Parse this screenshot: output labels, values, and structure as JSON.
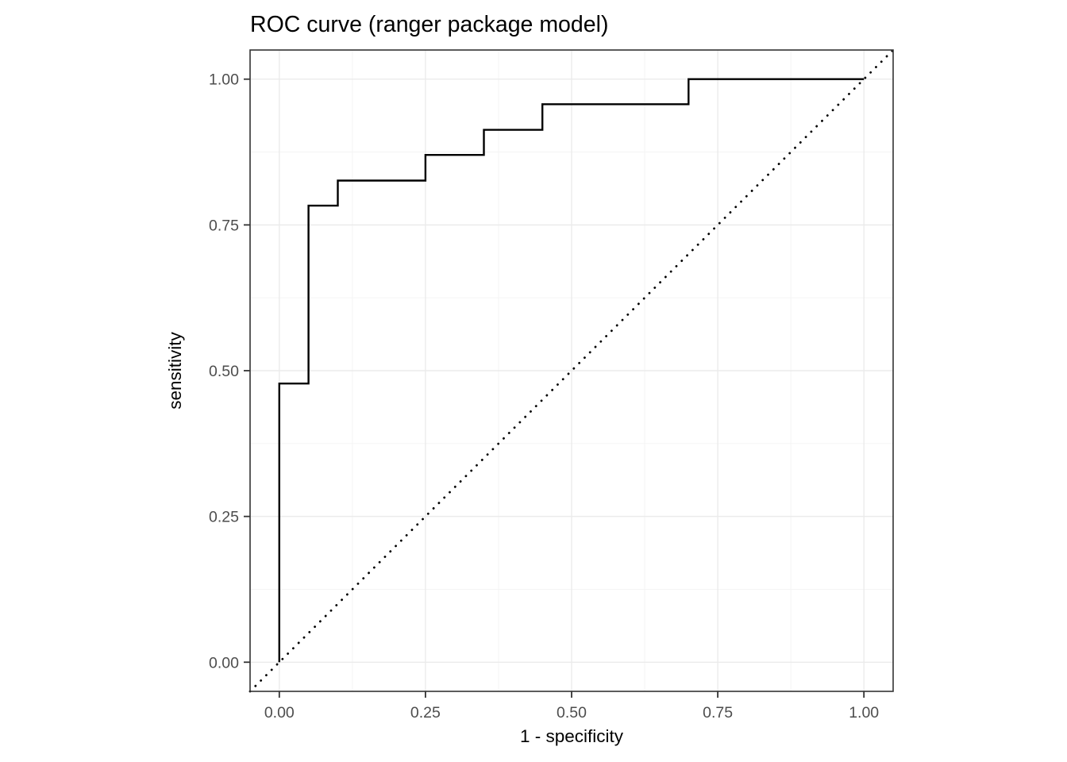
{
  "title": "ROC curve (ranger package model)",
  "colors": {
    "background": "#FFFFFF",
    "panel_bg": "#FFFFFF",
    "grid_major": "#EBEBEB",
    "grid_minor": "#F3F3F3",
    "panel_border": "#333333",
    "tick_mark": "#333333",
    "tick_label": "#4D4D4D",
    "title_text": "#000000",
    "axis_title_text": "#000000",
    "curve": "#000000",
    "diagonal": "#000000"
  },
  "chart_data": {
    "type": "line",
    "title": "ROC curve (ranger package model)",
    "xlabel": "1 - specificity",
    "ylabel": "sensitivity",
    "xlim": [
      -0.05,
      1.05
    ],
    "ylim": [
      -0.05,
      1.05
    ],
    "x_ticks": [
      0,
      0.25,
      0.5,
      0.75,
      1
    ],
    "y_ticks": [
      0,
      0.25,
      0.5,
      0.75,
      1
    ],
    "x_tick_labels": [
      "0.00",
      "0.25",
      "0.50",
      "0.75",
      "1.00"
    ],
    "y_tick_labels": [
      "0.00",
      "0.25",
      "0.50",
      "0.75",
      "1.00"
    ],
    "x_minor_ticks": [
      0.125,
      0.375,
      0.625,
      0.875
    ],
    "y_minor_ticks": [
      0.125,
      0.375,
      0.625,
      0.875
    ],
    "grid": true,
    "legend": "none",
    "series": [
      {
        "name": "roc-curve",
        "style": "solid-step",
        "color": "#000000",
        "points": [
          [
            0.0,
            0.0
          ],
          [
            0.0,
            0.478
          ],
          [
            0.05,
            0.478
          ],
          [
            0.05,
            0.783
          ],
          [
            0.1,
            0.783
          ],
          [
            0.1,
            0.826
          ],
          [
            0.25,
            0.826
          ],
          [
            0.25,
            0.87
          ],
          [
            0.35,
            0.87
          ],
          [
            0.35,
            0.913
          ],
          [
            0.45,
            0.913
          ],
          [
            0.45,
            0.957
          ],
          [
            0.7,
            0.957
          ],
          [
            0.7,
            1.0
          ],
          [
            1.0,
            1.0
          ]
        ]
      },
      {
        "name": "chance-diagonal",
        "style": "dotted",
        "color": "#000000",
        "points": [
          [
            -0.05,
            -0.05
          ],
          [
            1.05,
            1.05
          ]
        ]
      }
    ]
  }
}
